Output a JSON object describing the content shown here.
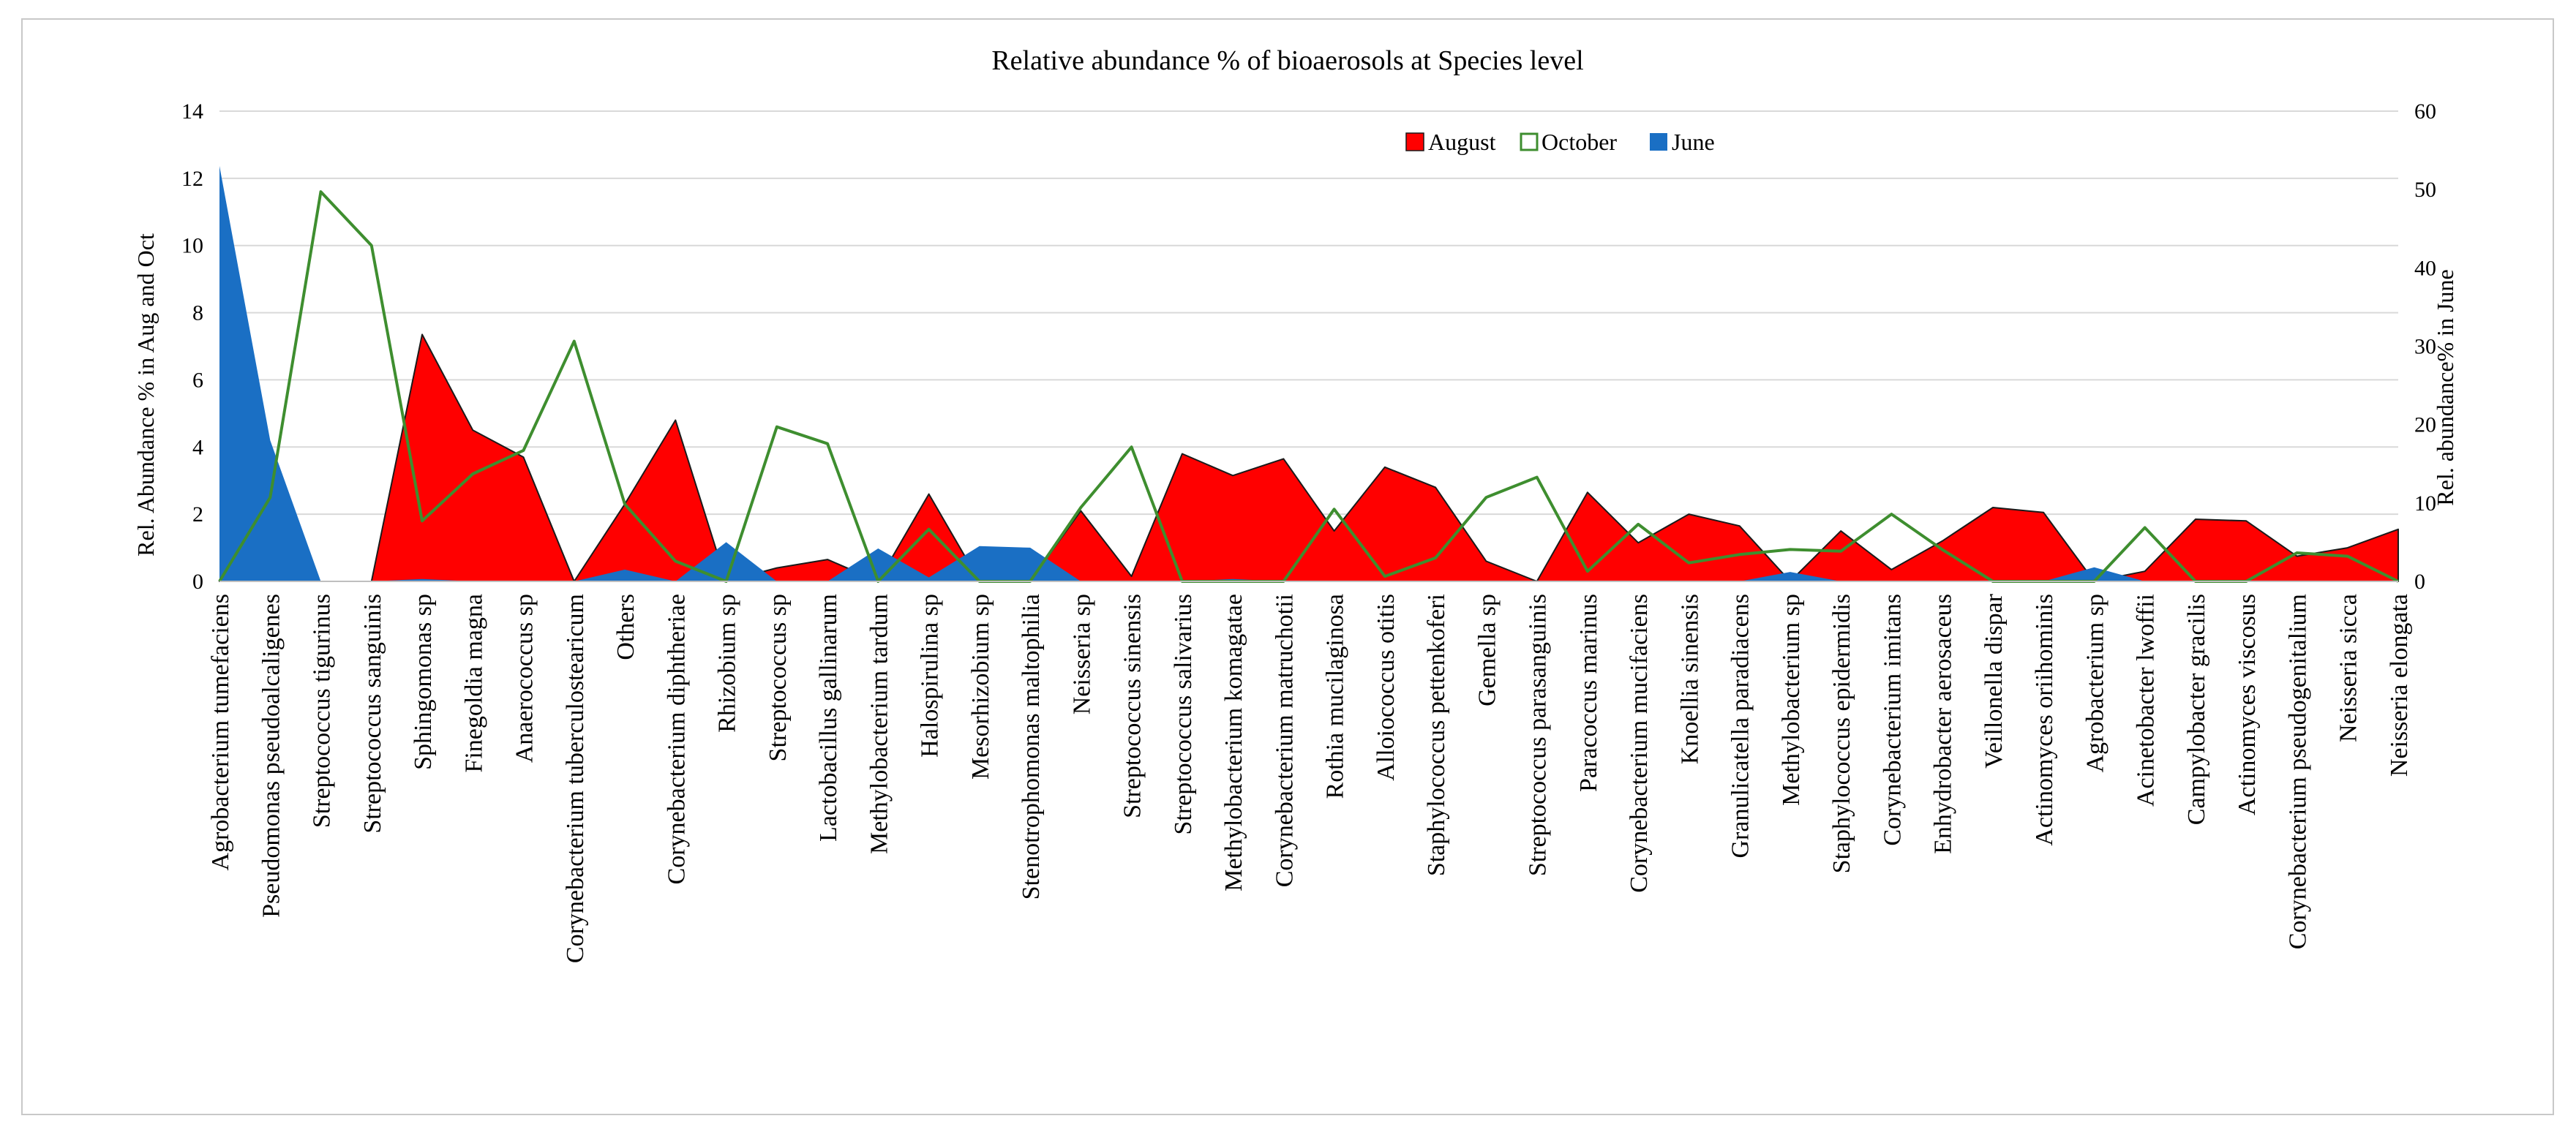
{
  "chart_data": {
    "type": "area",
    "title": "Relative abundance % of bioaerosols at Species level",
    "ylabel_left": "Rel. Abundance % in Aug and Oct",
    "ylabel_right": "Rel. abundance% in June",
    "ylim_left": [
      0,
      14
    ],
    "ylim_right": [
      0,
      60
    ],
    "yticks_left": [
      "0",
      "2",
      "4",
      "6",
      "8",
      "10",
      "12",
      "14"
    ],
    "yticks_right": [
      "0",
      "10",
      "20",
      "30",
      "40",
      "50",
      "60"
    ],
    "legend_position": "top-right",
    "categories": [
      "Agrobacterium tumefaciens",
      "Pseudomonas pseudoalcaligenes",
      "Streptococcus tigurinus",
      "Streptococcus sanguinis",
      "Sphingomonas sp",
      "Finegoldia magna",
      "Anaerococcus sp",
      "Corynebacterium tuberculostearicum",
      "Others",
      "Corynebacterium diphtheriae",
      "Rhizobium sp",
      "Streptococcus sp",
      "Lactobacillus gallinarum",
      "Methylobacterium tardum",
      "Halospirulina sp",
      "Mesorhizobium sp",
      "Stenotrophomonas maltophilia",
      "Neisseria sp",
      "Streptococcus sinensis",
      "Streptococcus salivarius",
      "Methylobacterium komagatae",
      "Corynebacterium matruchotii",
      "Rothia mucilaginosa",
      "Alloiococcus otitis",
      "Staphylococcus pettenkoferi",
      "Gemella sp",
      "Streptococcus parasanguinis",
      "Paracoccus marinus",
      "Corynebacterium mucifaciens",
      "Knoellia sinensis",
      "Granulicatella paradiacens",
      "Methylobacterium sp",
      "Staphylococcus epidermidis",
      "Corynebacterium imitans",
      "Enhydrobacter aerosaceus",
      "Veillonella dispar",
      "Actinomyces oriihominis",
      "Agrobacterium sp",
      "Acinetobacter lwoffii",
      "Campylobacter gracilis",
      "Actinomyces viscosus",
      "Corynebacterium pseudogenitalium",
      "Neisseria sicca",
      "Neisseria elongata"
    ],
    "series": [
      {
        "name": "August",
        "style": "filled-area",
        "axis": "left",
        "color": "#ff0000",
        "edge_color": "#1a1a1a",
        "values": [
          0,
          0,
          0,
          0,
          7.35,
          4.5,
          3.7,
          0,
          2.3,
          4.8,
          0,
          0.4,
          0.65,
          0,
          2.6,
          0,
          0,
          2.1,
          0.15,
          3.8,
          3.15,
          3.65,
          1.5,
          3.4,
          2.8,
          0.6,
          0,
          2.65,
          1.15,
          2.0,
          1.65,
          0,
          1.5,
          0.35,
          1.2,
          2.2,
          2.05,
          0,
          0.3,
          1.85,
          1.8,
          0.75,
          1.0,
          1.55
        ]
      },
      {
        "name": "October",
        "style": "line",
        "axis": "left",
        "color": "#3e8e2f",
        "values": [
          0,
          2.5,
          11.6,
          10.0,
          1.8,
          3.2,
          3.9,
          7.15,
          2.3,
          0.6,
          0,
          4.6,
          4.1,
          0,
          1.55,
          0,
          0,
          2.2,
          4.0,
          0,
          0,
          0,
          2.15,
          0.15,
          0.7,
          2.5,
          3.1,
          0.3,
          1.7,
          0.55,
          0.8,
          0.95,
          0.9,
          2.0,
          0.95,
          0,
          0,
          0,
          1.6,
          0,
          0,
          0.85,
          0.75,
          0
        ]
      },
      {
        "name": "June",
        "style": "filled-area",
        "axis": "right",
        "color": "#1a6fc4",
        "values": [
          53,
          18,
          0,
          0,
          0.3,
          0,
          0,
          0,
          1.5,
          0,
          5,
          0,
          0,
          4.2,
          0.5,
          4.5,
          4.3,
          0,
          0,
          0,
          0.3,
          0,
          0,
          0,
          0,
          0,
          0,
          0,
          0,
          0,
          0,
          1.2,
          0,
          0,
          0,
          0,
          0,
          1.8,
          0,
          0,
          0,
          0,
          0,
          0
        ]
      }
    ]
  }
}
